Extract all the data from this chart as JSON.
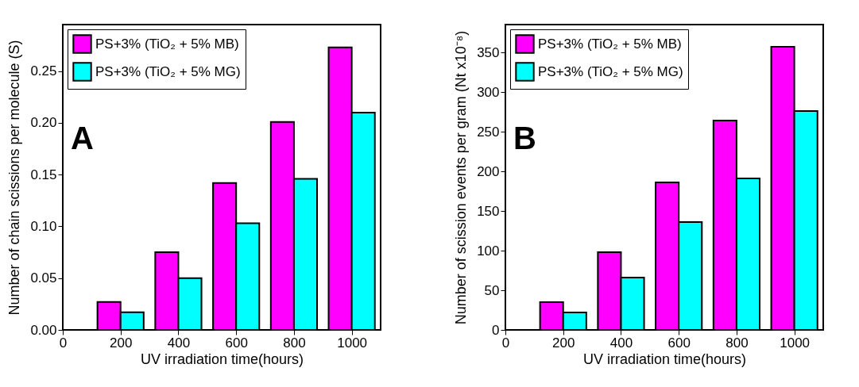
{
  "chart_data": [
    {
      "type": "bar",
      "annotations": [
        "A"
      ],
      "xlabel": "UV irradiation time(hours)",
      "ylabel": "Number of chain scissions per molecule (S)",
      "x": [
        200,
        400,
        600,
        800,
        1000
      ],
      "series": [
        {
          "name": "PS+3% (TiO₂ + 5% MB)",
          "color": "#ff00ff",
          "values": [
            0.027,
            0.075,
            0.142,
            0.201,
            0.273
          ]
        },
        {
          "name": "PS+3% (TiO₂ + 5% MG)",
          "color": "#00ffff",
          "values": [
            0.017,
            0.05,
            0.103,
            0.146,
            0.21
          ]
        }
      ],
      "xlim": [
        0,
        1100
      ],
      "xticks": [
        0,
        200,
        400,
        600,
        800,
        1000
      ],
      "ylim": [
        0,
        0.295
      ],
      "yticks": [
        {
          "value": 0,
          "label": "0.00"
        },
        0.05,
        {
          "value": 0.1,
          "label": "0.10"
        },
        0.15,
        {
          "value": 0.2,
          "label": "0.20"
        },
        0.25
      ],
      "legend": "top left"
    },
    {
      "type": "bar",
      "annotations": [
        "B"
      ],
      "xlabel": "UV irradiation time(hours)",
      "ylabel": "Number of scission events per gram (Nt x10⁻⁸)",
      "x": [
        200,
        400,
        600,
        800,
        1000
      ],
      "series": [
        {
          "name": "PS+3% (TiO₂ + 5% MB)",
          "color": "#ff00ff",
          "values": [
            35,
            98,
            186,
            264,
            357
          ]
        },
        {
          "name": "PS+3% (TiO₂ + 5% MG)",
          "color": "#00ffff",
          "values": [
            22,
            66,
            136,
            191,
            276
          ]
        }
      ],
      "xlim": [
        0,
        1100
      ],
      "xticks": [
        0,
        200,
        400,
        600,
        800,
        1000
      ],
      "ylim": [
        0,
        385
      ],
      "yticks": [
        0,
        50,
        100,
        150,
        200,
        250,
        300,
        350
      ],
      "legend": "top left"
    }
  ]
}
